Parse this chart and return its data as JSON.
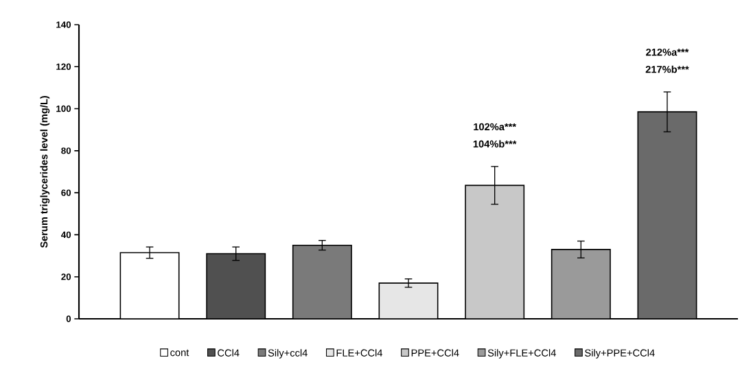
{
  "chart_data": {
    "type": "bar",
    "ylabel": "Serum triglycerides level (mg/L)",
    "categories": [
      null,
      null,
      null,
      null,
      null,
      null,
      null
    ],
    "series": [
      {
        "name": "cont",
        "color": "#ffffff",
        "values": [
          31.5,
          null,
          null,
          null,
          null,
          null,
          null
        ],
        "errors": [
          2.7,
          null,
          null,
          null,
          null,
          null,
          null
        ]
      },
      {
        "name": "CCl4",
        "color": "#505050",
        "values": [
          null,
          31,
          null,
          null,
          null,
          null,
          null
        ],
        "errors": [
          null,
          3.2,
          null,
          null,
          null,
          null,
          null
        ]
      },
      {
        "name": "Sily+ccl4",
        "color": "#7a7a7a",
        "values": [
          null,
          null,
          35,
          null,
          null,
          null,
          null
        ],
        "errors": [
          null,
          null,
          2.3,
          null,
          null,
          null,
          null
        ]
      },
      {
        "name": "FLE+CCl4",
        "color": "#e6e6e6",
        "values": [
          null,
          null,
          null,
          17,
          null,
          null,
          null
        ],
        "errors": [
          null,
          null,
          null,
          2,
          null,
          null,
          null
        ]
      },
      {
        "name": "PPE+CCl4",
        "color": "#c8c8c8",
        "values": [
          null,
          null,
          null,
          null,
          63.5,
          null,
          null
        ],
        "errors": [
          null,
          null,
          null,
          null,
          9,
          null,
          null
        ]
      },
      {
        "name": "Sily+FLE+CCl4",
        "color": "#9a9a9a",
        "values": [
          null,
          null,
          null,
          null,
          null,
          33,
          null
        ],
        "errors": [
          null,
          null,
          null,
          null,
          null,
          4,
          null
        ]
      },
      {
        "name": "Sily+PPE+CCl4",
        "color": "#6a6a6a",
        "values": [
          null,
          null,
          null,
          null,
          null,
          null,
          98.5
        ],
        "errors": [
          null,
          null,
          null,
          null,
          null,
          null,
          9.5
        ]
      }
    ],
    "annotations": [
      "102%a***",
      "104%b***",
      "212%a***",
      "217%b***"
    ],
    "ylim": [
      0,
      140
    ],
    "yticks": [
      0,
      20,
      40,
      60,
      80,
      100,
      120,
      140
    ],
    "tick_labels": "y",
    "legend": "bottom"
  }
}
